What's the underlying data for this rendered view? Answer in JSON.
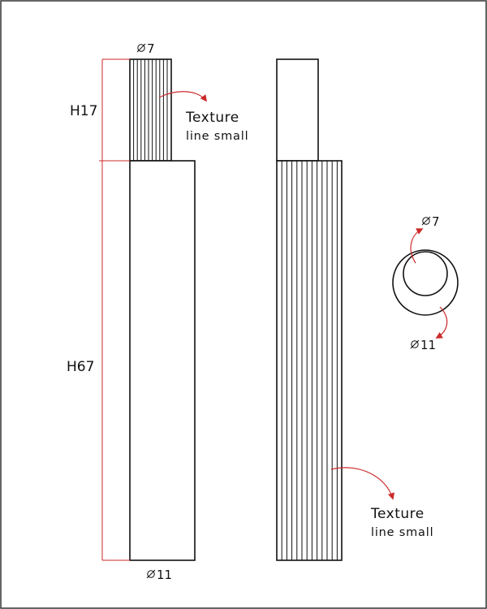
{
  "colors": {
    "ink": "#111111",
    "dimension_red": "#cc2a2a",
    "frame": "#333333",
    "background": "#ffffff"
  },
  "icons": {
    "diameter": "diameter-icon",
    "arrow": "curved-arrow-icon"
  },
  "labels": {
    "height_top": "H17",
    "height_bottom": "H67",
    "diameter_top": "7",
    "diameter_bottom": "11",
    "circle_diameter_inner": "7",
    "circle_diameter_outer": "11"
  },
  "notes": {
    "texture_upper": {
      "line1": "Texture",
      "line2": "line small"
    },
    "texture_lower": {
      "line1": "Texture",
      "line2": "line small"
    }
  }
}
